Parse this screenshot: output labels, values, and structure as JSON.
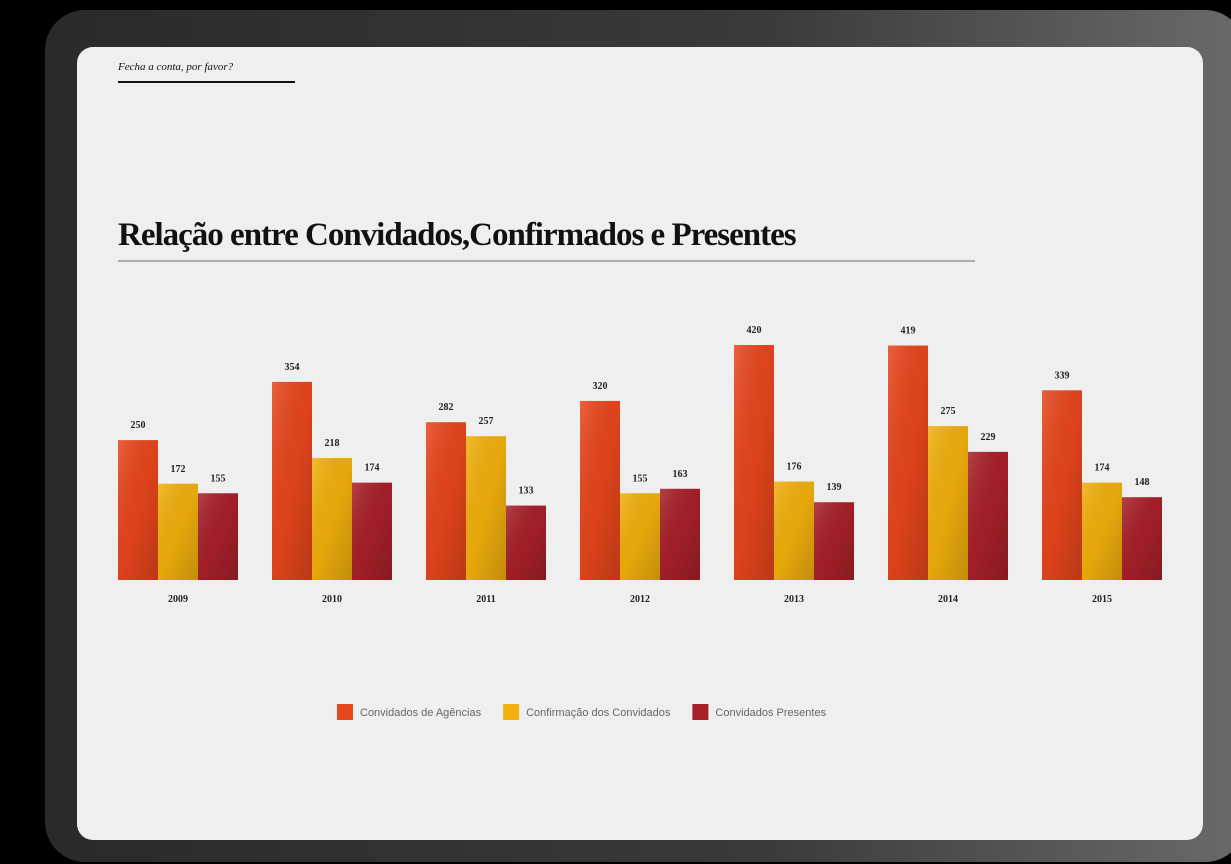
{
  "header": {
    "tagline": "Fecha a conta, por favor?"
  },
  "chart_data": {
    "type": "bar",
    "title": "Relação entre Convidados,Confirmados e Presentes",
    "categories": [
      "2009",
      "2010",
      "2011",
      "2012",
      "2013",
      "2014",
      "2015"
    ],
    "series": [
      {
        "name": "Convidados de Agências",
        "color": "#e8461c",
        "values": [
          250,
          354,
          282,
          320,
          420,
          419,
          339
        ]
      },
      {
        "name": "Confirmação dos Convidados",
        "color": "#f2b00c",
        "values": [
          172,
          218,
          257,
          155,
          176,
          275,
          174
        ]
      },
      {
        "name": "Convidados Presentes",
        "color": "#a8202a",
        "values": [
          155,
          174,
          133,
          163,
          139,
          229,
          148
        ]
      }
    ],
    "legend": "bottom"
  }
}
